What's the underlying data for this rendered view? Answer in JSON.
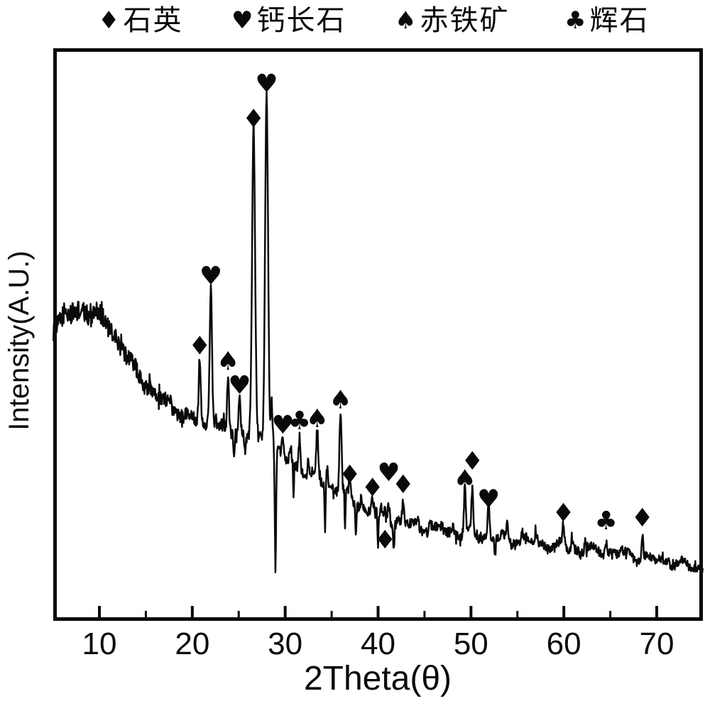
{
  "legend": {
    "items": [
      {
        "symbol": "♦",
        "marker": "diamond",
        "label": "石英"
      },
      {
        "symbol": "♥",
        "marker": "heart",
        "label": "钙长石"
      },
      {
        "symbol": "♠",
        "marker": "spade",
        "label": "赤铁矿"
      },
      {
        "symbol": "♣",
        "marker": "club",
        "label": "辉石"
      }
    ]
  },
  "axes": {
    "x_label": "2Theta(θ)",
    "y_label": "Intensity(A.U.)"
  },
  "chart_data": {
    "type": "line",
    "title": "",
    "xlabel": "2Theta(θ)",
    "ylabel": "Intensity(A.U.)",
    "xlim": [
      5,
      75
    ],
    "ylim": [
      0,
      100
    ],
    "x_major_ticks": [
      10,
      20,
      30,
      40,
      50,
      60,
      70
    ],
    "x_minor_ticks": [
      15,
      25,
      35,
      45,
      55,
      65
    ],
    "grid": false,
    "legend_position": "top",
    "line_color": "#0a0a0a",
    "intensity_units": "arbitrary (A.U.), 0-100 scale",
    "background_points": [
      [
        5.0,
        50.5
      ],
      [
        6.0,
        52.0
      ],
      [
        7.5,
        53.2
      ],
      [
        9.0,
        53.5
      ],
      [
        10.5,
        51.8
      ],
      [
        12.0,
        48.0
      ],
      [
        13.5,
        43.8
      ],
      [
        15.0,
        40.5
      ],
      [
        16.5,
        38.0
      ],
      [
        18.0,
        36.2
      ],
      [
        19.5,
        34.8
      ],
      [
        21.0,
        33.8
      ],
      [
        22.5,
        33.0
      ],
      [
        24.0,
        32.3
      ],
      [
        25.5,
        31.8
      ],
      [
        27.0,
        31.0
      ],
      [
        28.5,
        29.8
      ],
      [
        30.0,
        27.2
      ],
      [
        31.5,
        25.8
      ],
      [
        33.0,
        24.2
      ],
      [
        34.5,
        22.8
      ],
      [
        36.0,
        21.5
      ],
      [
        37.5,
        19.6
      ],
      [
        39.0,
        18.1
      ],
      [
        40.5,
        17.1
      ],
      [
        42.0,
        16.3
      ],
      [
        43.5,
        15.7
      ],
      [
        45.0,
        15.1
      ],
      [
        46.5,
        14.7
      ],
      [
        48.0,
        14.3
      ],
      [
        49.5,
        13.9
      ],
      [
        51.0,
        13.6
      ],
      [
        52.5,
        13.4
      ],
      [
        54.0,
        13.2
      ],
      [
        55.5,
        12.8
      ],
      [
        57.0,
        12.4
      ],
      [
        58.5,
        12.1
      ],
      [
        60.0,
        11.7
      ],
      [
        61.5,
        11.3
      ],
      [
        63.0,
        11.1
      ],
      [
        64.5,
        10.9
      ],
      [
        66.0,
        10.5
      ],
      [
        67.5,
        10.1
      ],
      [
        69.0,
        9.7
      ],
      [
        70.5,
        9.3
      ],
      [
        72.0,
        8.9
      ],
      [
        73.5,
        8.4
      ],
      [
        75.0,
        8.1
      ]
    ],
    "peaks": [
      {
        "two_theta": 20.8,
        "height": 11.5,
        "sigma": 0.1,
        "marker": "diamond",
        "marker_intensity": 47.3
      },
      {
        "two_theta": 22.0,
        "height": 24.5,
        "sigma": 0.13,
        "marker": "heart",
        "marker_intensity": 59.6
      },
      {
        "two_theta": 22.55,
        "height": 3.0,
        "sigma": 0.08
      },
      {
        "two_theta": 23.85,
        "height": 9.5,
        "sigma": 0.1,
        "marker": "spade",
        "marker_intensity": 44.6
      },
      {
        "two_theta": 25.1,
        "height": 6.5,
        "sigma": 0.1,
        "marker": "heart",
        "marker_intensity": 40.4
      },
      {
        "two_theta": 26.6,
        "height": 54.5,
        "sigma": 0.16,
        "marker": "diamond",
        "marker_intensity": 87.3
      },
      {
        "two_theta": 28.0,
        "height": 61.5,
        "sigma": 0.16,
        "marker": "heart",
        "marker_intensity": 93.5
      },
      {
        "two_theta": 28.55,
        "height": 8.0,
        "sigma": 0.09
      },
      {
        "two_theta": 29.75,
        "height": 3.8,
        "sigma": 0.1,
        "marker": "heart",
        "marker_intensity": 33.4
      },
      {
        "two_theta": 30.6,
        "height": 2.2,
        "sigma": 0.08
      },
      {
        "two_theta": 31.55,
        "height": 6.0,
        "sigma": 0.1,
        "marker": "club",
        "marker_intensity": 34.1
      },
      {
        "two_theta": 32.5,
        "height": 2.2,
        "sigma": 0.08
      },
      {
        "two_theta": 33.45,
        "height": 8.5,
        "sigma": 0.1,
        "marker": "spade",
        "marker_intensity": 34.5
      },
      {
        "two_theta": 34.5,
        "height": 2.8,
        "sigma": 0.08
      },
      {
        "two_theta": 35.95,
        "height": 14.0,
        "sigma": 0.11,
        "marker": "spade",
        "marker_intensity": 37.8
      },
      {
        "two_theta": 36.95,
        "height": 2.6,
        "sigma": 0.09,
        "marker": "diamond",
        "marker_intensity": 24.6
      },
      {
        "two_theta": 38.2,
        "height": 1.8,
        "sigma": 0.08
      },
      {
        "two_theta": 39.4,
        "height": 3.2,
        "sigma": 0.09,
        "marker": "diamond",
        "marker_intensity": 22.3
      },
      {
        "two_theta": 40.35,
        "height": 2.0,
        "sigma": 0.08
      },
      {
        "two_theta": 40.75,
        "height": 2.0,
        "sigma": 0.08,
        "marker": "diamond",
        "marker_intensity": 13.1
      },
      {
        "two_theta": 41.15,
        "height": 3.5,
        "sigma": 0.09,
        "marker": "heart",
        "marker_intensity": 25.0
      },
      {
        "two_theta": 42.7,
        "height": 3.4,
        "sigma": 0.09,
        "marker": "diamond",
        "marker_intensity": 22.9
      },
      {
        "two_theta": 44.3,
        "height": 1.8,
        "sigma": 0.08
      },
      {
        "two_theta": 45.6,
        "height": 2.0,
        "sigma": 0.08
      },
      {
        "two_theta": 46.9,
        "height": 1.8,
        "sigma": 0.08
      },
      {
        "two_theta": 48.1,
        "height": 1.6,
        "sigma": 0.08
      },
      {
        "two_theta": 49.35,
        "height": 8.5,
        "sigma": 0.1,
        "marker": "spade",
        "marker_intensity": 23.8
      },
      {
        "two_theta": 50.15,
        "height": 8.0,
        "sigma": 0.1,
        "marker": "diamond",
        "marker_intensity": 27.0
      },
      {
        "two_theta": 51.9,
        "height": 6.0,
        "sigma": 0.1,
        "marker": "heart",
        "marker_intensity": 20.3
      },
      {
        "two_theta": 53.9,
        "height": 3.0,
        "sigma": 0.08
      },
      {
        "two_theta": 55.5,
        "height": 1.4,
        "sigma": 0.08
      },
      {
        "two_theta": 57.0,
        "height": 1.6,
        "sigma": 0.1
      },
      {
        "two_theta": 59.95,
        "height": 4.0,
        "sigma": 0.09,
        "marker": "diamond",
        "marker_intensity": 17.9
      },
      {
        "two_theta": 60.9,
        "height": 1.8,
        "sigma": 0.08
      },
      {
        "two_theta": 62.3,
        "height": 1.8,
        "sigma": 0.08
      },
      {
        "two_theta": 64.55,
        "height": 2.4,
        "sigma": 0.09,
        "marker": "club",
        "marker_intensity": 16.5
      },
      {
        "two_theta": 66.2,
        "height": 1.4,
        "sigma": 0.08
      },
      {
        "two_theta": 68.45,
        "height": 4.5,
        "sigma": 0.09,
        "marker": "diamond",
        "marker_intensity": 17.0
      },
      {
        "two_theta": 71.3,
        "height": 1.2,
        "sigma": 0.08
      }
    ],
    "dips": [
      {
        "two_theta": 24.5,
        "depth": 4,
        "sigma": 0.06
      },
      {
        "two_theta": 25.7,
        "depth": 4,
        "sigma": 0.06
      },
      {
        "two_theta": 28.95,
        "depth": 21,
        "sigma": 0.07
      },
      {
        "two_theta": 30.9,
        "depth": 6,
        "sigma": 0.05
      },
      {
        "two_theta": 34.3,
        "depth": 8,
        "sigma": 0.06
      },
      {
        "two_theta": 36.45,
        "depth": 7,
        "sigma": 0.05
      },
      {
        "two_theta": 37.6,
        "depth": 5,
        "sigma": 0.06
      },
      {
        "two_theta": 40.0,
        "depth": 6,
        "sigma": 0.06
      },
      {
        "two_theta": 41.7,
        "depth": 5,
        "sigma": 0.06
      },
      {
        "two_theta": 52.6,
        "depth": 3,
        "sigma": 0.06
      }
    ],
    "noise": {
      "seed": 1234,
      "amplitude": [
        [
          5,
          1.8
        ],
        [
          9,
          1.8
        ],
        [
          12,
          1.6
        ],
        [
          16,
          1.35
        ],
        [
          20,
          1.15
        ],
        [
          26,
          1.0
        ],
        [
          32,
          1.0
        ],
        [
          40,
          0.95
        ],
        [
          50,
          0.85
        ],
        [
          60,
          0.85
        ],
        [
          70,
          0.75
        ],
        [
          75,
          0.75
        ]
      ]
    }
  }
}
